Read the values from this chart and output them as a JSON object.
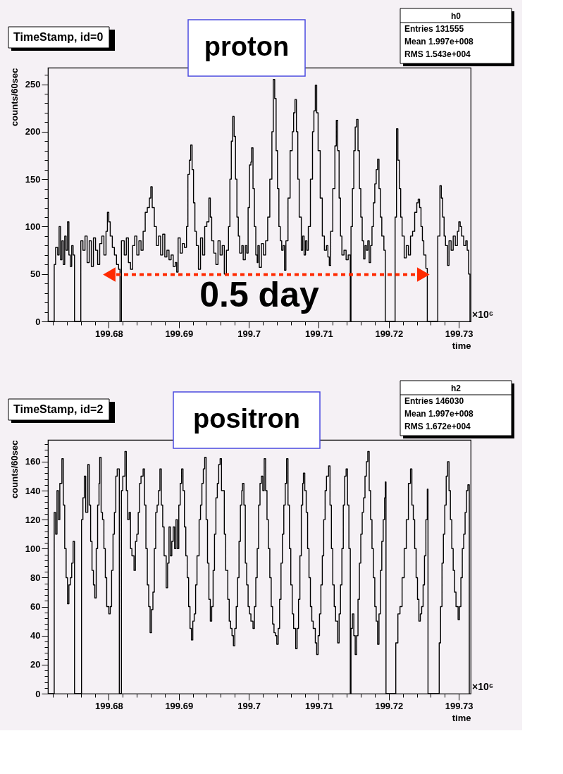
{
  "chart_data": [
    {
      "type": "step",
      "title": "TimeStamp, id=0",
      "subtitle": "proton",
      "xlabel": "time",
      "ylabel": "counts/60sec",
      "color": "#000000",
      "xlim": [
        199.6713,
        199.7317
      ],
      "ylim": [
        0,
        267.5
      ],
      "xticks": [
        {
          "value": 199.672,
          "label": null
        },
        {
          "value": 199.674,
          "label": null
        },
        {
          "value": 199.676,
          "label": null
        },
        {
          "value": 199.678,
          "label": null
        },
        199.68,
        {
          "value": 199.682,
          "label": null
        },
        {
          "value": 199.684,
          "label": null
        },
        {
          "value": 199.686,
          "label": null
        },
        {
          "value": 199.688,
          "label": null
        },
        199.69,
        {
          "value": 199.692,
          "label": null
        },
        {
          "value": 199.694,
          "label": null
        },
        {
          "value": 199.696,
          "label": null
        },
        {
          "value": 199.698,
          "label": null
        },
        199.7,
        {
          "value": 199.702,
          "label": null
        },
        {
          "value": 199.704,
          "label": null
        },
        {
          "value": 199.706,
          "label": null
        },
        {
          "value": 199.708,
          "label": null
        },
        199.71,
        {
          "value": 199.712,
          "label": null
        },
        {
          "value": 199.714,
          "label": null
        },
        {
          "value": 199.716,
          "label": null
        },
        {
          "value": 199.718,
          "label": null
        },
        199.72,
        {
          "value": 199.722,
          "label": null
        },
        {
          "value": 199.724,
          "label": null
        },
        {
          "value": 199.726,
          "label": null
        },
        {
          "value": 199.728,
          "label": null
        },
        199.73
      ],
      "yticks": [
        0,
        {
          "value": 10,
          "label": null
        },
        {
          "value": 20,
          "label": null
        },
        {
          "value": 30,
          "label": null
        },
        {
          "value": 40,
          "label": null
        },
        50,
        {
          "value": 60,
          "label": null
        },
        {
          "value": 70,
          "label": null
        },
        {
          "value": 80,
          "label": null
        },
        {
          "value": 90,
          "label": null
        },
        100,
        {
          "value": 110,
          "label": null
        },
        {
          "value": 120,
          "label": null
        },
        {
          "value": 130,
          "label": null
        },
        {
          "value": 140,
          "label": null
        },
        150,
        {
          "value": 160,
          "label": null
        },
        {
          "value": 170,
          "label": null
        },
        {
          "value": 180,
          "label": null
        },
        {
          "value": 190,
          "label": null
        },
        200,
        {
          "value": 210,
          "label": null
        },
        {
          "value": 220,
          "label": null
        },
        {
          "value": 230,
          "label": null
        },
        {
          "value": 240,
          "label": null
        },
        250,
        {
          "value": 260,
          "label": null
        }
      ],
      "x": [
        199.6713,
        199.6722,
        199.6724,
        199.6727,
        199.6729,
        199.6731,
        199.6733,
        199.6735,
        199.6737,
        199.6739,
        199.6741,
        199.6743,
        199.6745,
        199.6747,
        199.6749,
        199.6751,
        199.676,
        199.6763,
        199.6766,
        199.6769,
        199.6772,
        199.6775,
        199.6778,
        199.6781,
        199.6784,
        199.6787,
        199.679,
        199.6793,
        199.6796,
        199.6798,
        199.68,
        199.6802,
        199.6805,
        199.6808,
        199.6811,
        199.6814,
        199.6816,
        199.6818,
        199.6822,
        199.6825,
        199.6828,
        199.6831,
        199.6834,
        199.6837,
        199.684,
        199.6843,
        199.6846,
        199.6849,
        199.6852,
        199.6855,
        199.6858,
        199.686,
        199.6862,
        199.6865,
        199.6868,
        199.6871,
        199.6874,
        199.6877,
        199.688,
        199.6883,
        199.6886,
        199.6889,
        199.6892,
        199.6895,
        199.6897,
        199.6899,
        199.6902,
        199.6905,
        199.6908,
        199.6911,
        199.6913,
        199.6915,
        199.6917,
        199.6919,
        199.6921,
        199.6923,
        199.6925,
        199.6928,
        199.6931,
        199.6934,
        199.6937,
        199.694,
        199.6943,
        199.6945,
        199.6947,
        199.695,
        199.6953,
        199.6956,
        199.6959,
        199.6962,
        199.6965,
        199.6968,
        199.6971,
        199.6973,
        199.6975,
        199.6977,
        199.6979,
        199.6981,
        199.6983,
        199.6985,
        199.6987,
        199.699,
        199.6992,
        199.6995,
        199.6997,
        199.6999,
        199.7001,
        199.7003,
        199.7004,
        199.7006,
        199.7008,
        199.701,
        199.7012,
        199.7013,
        199.7015,
        199.7018,
        199.7021,
        199.7024,
        199.7027,
        199.703,
        199.7033,
        199.7035,
        199.7037,
        199.7039,
        199.7041,
        199.7043,
        199.7045,
        199.7047,
        199.7049,
        199.7051,
        199.7053,
        199.7056,
        199.7059,
        199.7062,
        199.7064,
        199.7066,
        199.7068,
        199.707,
        199.7072,
        199.7075,
        199.7077,
        199.7079,
        199.7081,
        199.7083,
        199.7085,
        199.7088,
        199.7091,
        199.7093,
        199.7095,
        199.7097,
        199.7099,
        199.7102,
        199.7105,
        199.7108,
        199.7111,
        199.7113,
        199.7115,
        199.7117,
        199.712,
        199.7123,
        199.7125,
        199.7127,
        199.7129,
        199.7131,
        199.7133,
        199.7136,
        199.7139,
        199.7142,
        199.7145,
        199.7146,
        199.7148,
        199.715,
        199.7152,
        199.7154,
        199.7156,
        199.7158,
        199.716,
        199.7162,
        199.7164,
        199.7166,
        199.7168,
        199.717,
        199.7172,
        199.7174,
        199.7176,
        199.7178,
        199.718,
        199.7182,
        199.7184,
        199.7186,
        199.7188,
        199.719,
        199.7193,
        199.7195,
        199.7209,
        199.7211,
        199.7213,
        199.7215,
        199.7217,
        199.7219,
        199.7222,
        199.7225,
        199.7228,
        199.7231,
        199.7234,
        199.7237,
        199.724,
        199.7242,
        199.7244,
        199.7246,
        199.7248,
        199.725,
        199.7253,
        199.7255,
        199.727,
        199.7273,
        199.7275,
        199.7277,
        199.7279,
        199.7281,
        199.7284,
        199.7286,
        199.7289,
        199.7292,
        199.7295,
        199.7298,
        199.73,
        199.7302,
        199.7304,
        199.7307,
        199.731,
        199.7312,
        199.7314,
        199.7316
      ],
      "values": [
        0,
        60,
        78,
        70,
        100,
        65,
        85,
        60,
        90,
        75,
        105,
        70,
        58,
        80,
        70,
        0,
        85,
        75,
        90,
        62,
        85,
        58,
        88,
        75,
        60,
        82,
        90,
        70,
        95,
        115,
        105,
        90,
        78,
        70,
        60,
        55,
        0,
        85,
        70,
        88,
        62,
        55,
        80,
        90,
        70,
        85,
        75,
        95,
        115,
        120,
        130,
        142,
        120,
        100,
        80,
        90,
        70,
        92,
        68,
        75,
        65,
        70,
        58,
        62,
        52,
        88,
        72,
        82,
        78,
        100,
        155,
        170,
        186,
        160,
        125,
        95,
        80,
        55,
        88,
        70,
        100,
        105,
        130,
        110,
        85,
        72,
        60,
        85,
        70,
        80,
        50,
        75,
        100,
        150,
        190,
        216,
        195,
        150,
        110,
        90,
        72,
        80,
        65,
        80,
        72,
        120,
        165,
        168,
        183,
        140,
        100,
        70,
        62,
        80,
        57,
        82,
        70,
        85,
        110,
        150,
        200,
        255,
        235,
        180,
        140,
        100,
        85,
        75,
        80,
        54,
        85,
        130,
        180,
        200,
        220,
        234,
        200,
        150,
        110,
        75,
        90,
        70,
        85,
        75,
        100,
        150,
        200,
        222,
        249,
        220,
        180,
        130,
        90,
        75,
        80,
        68,
        59,
        95,
        140,
        185,
        212,
        180,
        130,
        90,
        70,
        75,
        65,
        70,
        0,
        100,
        140,
        180,
        205,
        213,
        180,
        140,
        110,
        85,
        66,
        80,
        75,
        85,
        62,
        80,
        100,
        125,
        145,
        160,
        171,
        140,
        110,
        90,
        75,
        0,
        110,
        203,
        170,
        140,
        110,
        90,
        67,
        80,
        70,
        90,
        95,
        115,
        125,
        129,
        120,
        100,
        85,
        70,
        56,
        0,
        90,
        143,
        130,
        110,
        90,
        80,
        59,
        85,
        75,
        90,
        80,
        95,
        105,
        100,
        90,
        80,
        85,
        75,
        50,
        0
      ],
      "annotations": [
        "×10⁶",
        "h0",
        "Entries 131555",
        "Mean 1.997e+008",
        "RMS 1.543e+004",
        "0.5 day"
      ]
    },
    {
      "type": "step",
      "title": "TimeStamp, id=2",
      "subtitle": "positron",
      "xlabel": "time",
      "ylabel": "counts/60sec",
      "color": "#000000",
      "xlim": [
        199.6713,
        199.7317
      ],
      "ylim": [
        0,
        175
      ],
      "xticks": [
        {
          "value": 199.672,
          "label": null
        },
        {
          "value": 199.674,
          "label": null
        },
        {
          "value": 199.676,
          "label": null
        },
        {
          "value": 199.678,
          "label": null
        },
        199.68,
        {
          "value": 199.682,
          "label": null
        },
        {
          "value": 199.684,
          "label": null
        },
        {
          "value": 199.686,
          "label": null
        },
        {
          "value": 199.688,
          "label": null
        },
        199.69,
        {
          "value": 199.692,
          "label": null
        },
        {
          "value": 199.694,
          "label": null
        },
        {
          "value": 199.696,
          "label": null
        },
        {
          "value": 199.698,
          "label": null
        },
        199.7,
        {
          "value": 199.702,
          "label": null
        },
        {
          "value": 199.704,
          "label": null
        },
        {
          "value": 199.706,
          "label": null
        },
        {
          "value": 199.708,
          "label": null
        },
        199.71,
        {
          "value": 199.712,
          "label": null
        },
        {
          "value": 199.714,
          "label": null
        },
        {
          "value": 199.716,
          "label": null
        },
        {
          "value": 199.718,
          "label": null
        },
        199.72,
        {
          "value": 199.722,
          "label": null
        },
        {
          "value": 199.724,
          "label": null
        },
        {
          "value": 199.726,
          "label": null
        },
        {
          "value": 199.728,
          "label": null
        },
        199.73
      ],
      "yticks": [
        0,
        {
          "value": 4,
          "label": null
        },
        {
          "value": 8,
          "label": null
        },
        {
          "value": 12,
          "label": null
        },
        {
          "value": 16,
          "label": null
        },
        20,
        {
          "value": 24,
          "label": null
        },
        {
          "value": 28,
          "label": null
        },
        {
          "value": 32,
          "label": null
        },
        {
          "value": 36,
          "label": null
        },
        40,
        {
          "value": 44,
          "label": null
        },
        {
          "value": 48,
          "label": null
        },
        {
          "value": 52,
          "label": null
        },
        {
          "value": 56,
          "label": null
        },
        60,
        {
          "value": 64,
          "label": null
        },
        {
          "value": 68,
          "label": null
        },
        {
          "value": 72,
          "label": null
        },
        {
          "value": 76,
          "label": null
        },
        80,
        {
          "value": 84,
          "label": null
        },
        {
          "value": 88,
          "label": null
        },
        {
          "value": 92,
          "label": null
        },
        {
          "value": 96,
          "label": null
        },
        100,
        {
          "value": 104,
          "label": null
        },
        {
          "value": 108,
          "label": null
        },
        {
          "value": 112,
          "label": null
        },
        {
          "value": 116,
          "label": null
        },
        120,
        {
          "value": 124,
          "label": null
        },
        {
          "value": 128,
          "label": null
        },
        {
          "value": 132,
          "label": null
        },
        {
          "value": 136,
          "label": null
        },
        140,
        {
          "value": 144,
          "label": null
        },
        {
          "value": 148,
          "label": null
        },
        {
          "value": 152,
          "label": null
        },
        {
          "value": 156,
          "label": null
        },
        160,
        {
          "value": 164,
          "label": null
        },
        {
          "value": 168,
          "label": null
        },
        {
          "value": 172,
          "label": null
        }
      ],
      "x": [
        199.6713,
        199.6722,
        199.6724,
        199.6726,
        199.6728,
        199.673,
        199.6733,
        199.6735,
        199.6737,
        199.6739,
        199.6741,
        199.6743,
        199.6745,
        199.6747,
        199.6749,
        199.6751,
        199.6761,
        199.6763,
        199.6765,
        199.6767,
        199.677,
        199.6772,
        199.6774,
        199.6776,
        199.6778,
        199.678,
        199.6782,
        199.6784,
        199.6786,
        199.6787,
        199.6789,
        199.6791,
        199.6793,
        199.6795,
        199.6797,
        199.68,
        199.6802,
        199.6804,
        199.6806,
        199.6808,
        199.681,
        199.6812,
        199.6815,
        199.6818,
        199.682,
        199.6823,
        199.6825,
        199.6827,
        199.6829,
        199.6831,
        199.6833,
        199.6836,
        199.6838,
        199.684,
        199.6842,
        199.6844,
        199.6846,
        199.6849,
        199.6851,
        199.6853,
        199.6855,
        199.6857,
        199.6859,
        199.6861,
        199.6863,
        199.6865,
        199.6867,
        199.6869,
        199.6871,
        199.6873,
        199.6875,
        199.6877,
        199.6879,
        199.6882,
        199.6884,
        199.6886,
        199.6888,
        199.689,
        199.6892,
        199.6894,
        199.6896,
        199.6898,
        199.69,
        199.6902,
        199.6904,
        199.6906,
        199.6908,
        199.691,
        199.6912,
        199.6914,
        199.6916,
        199.6918,
        199.692,
        199.6922,
        199.6924,
        199.6926,
        199.6929,
        199.6931,
        199.6933,
        199.6935,
        199.6937,
        199.6939,
        199.6941,
        199.6943,
        199.6945,
        199.6947,
        199.6949,
        199.6951,
        199.6953,
        199.6955,
        199.6957,
        199.6959,
        199.6961,
        199.6963,
        199.6965,
        199.6967,
        199.697,
        199.6972,
        199.6974,
        199.6976,
        199.6978,
        199.698,
        199.6982,
        199.6984,
        199.6986,
        199.6988,
        199.699,
        199.6991,
        199.6993,
        199.6995,
        199.6997,
        199.6999,
        199.7001,
        199.7003,
        199.7006,
        199.7008,
        199.701,
        199.7012,
        199.7014,
        199.7016,
        199.7018,
        199.702,
        199.7022,
        199.7024,
        199.7026,
        199.7028,
        199.703,
        199.7032,
        199.7034,
        199.7036,
        199.7038,
        199.704,
        199.7042,
        199.7044,
        199.7046,
        199.7048,
        199.705,
        199.7052,
        199.7054,
        199.7056,
        199.7058,
        199.706,
        199.7062,
        199.7064,
        199.7067,
        199.7069,
        199.7071,
        199.7073,
        199.7075,
        199.7077,
        199.7078,
        199.708,
        199.7082,
        199.7084,
        199.7086,
        199.7088,
        199.709,
        199.7092,
        199.7095,
        199.7097,
        199.7099,
        199.7101,
        199.7103,
        199.7105,
        199.7107,
        199.7109,
        199.7111,
        199.7114,
        199.7116,
        199.7118,
        199.712,
        199.7122,
        199.7124,
        199.7127,
        199.7129,
        199.7131,
        199.7133,
        199.7135,
        199.7137,
        199.7139,
        199.7141,
        199.7143,
        199.7145,
        199.7146,
        199.7148,
        199.715,
        199.7152,
        199.7154,
        199.7156,
        199.7158,
        199.716,
        199.7162,
        199.7164,
        199.7166,
        199.7168,
        199.717,
        199.7172,
        199.7174,
        199.7176,
        199.7178,
        199.718,
        199.7182,
        199.7184,
        199.7186,
        199.7188,
        199.719,
        199.7192,
        199.7194,
        199.7195,
        199.7196,
        199.721,
        199.7213,
        199.7216,
        199.7219,
        199.7222,
        199.7225,
        199.7228,
        199.7231,
        199.7233,
        199.7235,
        199.7237,
        199.7239,
        199.7241,
        199.7243,
        199.7245,
        199.7247,
        199.7249,
        199.7251,
        199.7253,
        199.7255,
        199.7256,
        199.7272,
        199.7274,
        199.7276,
        199.7278,
        199.728,
        199.7282,
        199.7284,
        199.7286,
        199.7288,
        199.729,
        199.7292,
        199.7294,
        199.7296,
        199.7299,
        199.7301,
        199.7303,
        199.7305,
        199.7307,
        199.7309,
        199.7311,
        199.7313,
        199.7315
      ],
      "values": [
        0,
        125,
        110,
        140,
        120,
        145,
        162,
        130,
        100,
        80,
        62,
        75,
        80,
        90,
        105,
        0,
        120,
        135,
        150,
        125,
        158,
        130,
        105,
        85,
        75,
        66,
        100,
        130,
        145,
        163,
        125,
        120,
        100,
        80,
        60,
        55,
        60,
        85,
        110,
        125,
        150,
        155,
        0,
        140,
        150,
        167,
        140,
        120,
        125,
        100,
        95,
        85,
        105,
        110,
        125,
        145,
        150,
        155,
        130,
        100,
        75,
        60,
        42,
        58,
        70,
        100,
        125,
        130,
        140,
        155,
        130,
        115,
        95,
        73,
        90,
        115,
        95,
        105,
        115,
        100,
        120,
        100,
        130,
        145,
        155,
        140,
        115,
        95,
        80,
        60,
        45,
        37,
        50,
        55,
        75,
        95,
        120,
        130,
        145,
        155,
        163,
        120,
        90,
        65,
        50,
        60,
        85,
        110,
        135,
        145,
        158,
        162,
        140,
        140,
        110,
        85,
        65,
        50,
        45,
        40,
        33,
        45,
        60,
        80,
        105,
        130,
        140,
        145,
        130,
        90,
        75,
        60,
        55,
        50,
        45,
        60,
        80,
        100,
        130,
        145,
        150,
        140,
        162,
        140,
        120,
        100,
        80,
        60,
        48,
        42,
        40,
        34,
        45,
        65,
        90,
        110,
        130,
        145,
        162,
        130,
        100,
        75,
        55,
        45,
        31,
        45,
        65,
        95,
        130,
        145,
        152,
        140,
        125,
        100,
        80,
        60,
        50,
        45,
        35,
        27,
        40,
        55,
        75,
        95,
        120,
        140,
        150,
        157,
        130,
        100,
        75,
        60,
        50,
        35,
        55,
        75,
        100,
        130,
        150,
        155,
        130,
        100,
        0,
        45,
        55,
        40,
        27,
        40,
        65,
        90,
        110,
        125,
        135,
        150,
        160,
        167,
        140,
        120,
        100,
        80,
        60,
        50,
        34,
        55,
        85,
        105,
        120,
        135,
        146,
        0,
        35,
        55,
        60,
        80,
        100,
        120,
        145,
        155,
        130,
        120,
        100,
        80,
        65,
        50,
        55,
        60,
        75,
        95,
        120,
        141,
        0,
        35,
        60,
        90,
        110,
        130,
        150,
        160,
        140,
        120,
        100,
        85,
        70,
        60,
        51,
        60,
        80,
        100,
        110,
        125,
        140,
        144,
        0
      ],
      "annotations": [
        "×10⁶",
        "h2",
        "Entries 146030",
        "Mean 1.997e+008",
        "RMS 1.672e+004"
      ]
    }
  ]
}
